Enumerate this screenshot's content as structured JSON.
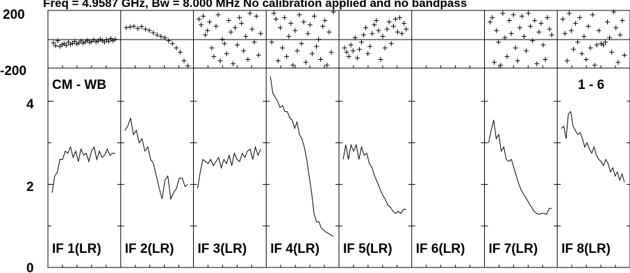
{
  "chart_data": {
    "type": "line",
    "title": "Freq = 4.9587 GHz, Bw = 8.000 MHz  No calibration applied and no bandpass",
    "left_label": "CM - WB",
    "right_label": "1 - 6",
    "phase_axis": {
      "ylim": [
        -200,
        200
      ],
      "tick_labels": [
        "200",
        "-200"
      ]
    },
    "amp_axis": {
      "ylim": [
        0,
        4.8
      ],
      "tick_labels": [
        "4",
        "2",
        "0"
      ],
      "ticks": [
        4,
        2,
        0
      ]
    },
    "panels": [
      {
        "label": "IF 1(LR)",
        "phase": [
          -25,
          -45,
          -10,
          -50,
          -38,
          -30,
          -42,
          -20,
          -35,
          -28,
          -15,
          -33,
          -25,
          -12,
          -28,
          -18,
          -8,
          -22,
          -15,
          -5,
          -18,
          -12,
          0,
          -10,
          -20,
          -5,
          -15,
          5,
          -10,
          0
        ],
        "amp": [
          1.8,
          2.2,
          2.3,
          2.6,
          2.6,
          2.8,
          2.75,
          2.9,
          2.65,
          2.8,
          2.55,
          2.85,
          2.7,
          2.75,
          2.55,
          2.8,
          2.9,
          2.6,
          2.8,
          2.65,
          2.7,
          2.85,
          2.7,
          2.75,
          2.75
        ]
      },
      {
        "label": "IF 2(LR)",
        "phase": [
          80,
          85,
          90,
          75,
          88,
          70,
          60,
          45,
          30,
          20,
          10,
          -10,
          -30,
          -60,
          -90,
          -150,
          -185
        ],
        "amp": [
          3.3,
          3.4,
          3.6,
          3.2,
          3.3,
          3.0,
          3.1,
          2.8,
          2.9,
          2.6,
          2.5,
          2.2,
          1.9,
          1.65,
          2.1,
          2.2,
          1.65,
          1.8,
          1.9,
          2.15,
          2.15,
          1.95,
          2.0
        ]
      },
      {
        "label": "IF 3(LR)",
        "phase": [
          140,
          100,
          160,
          30,
          60,
          120,
          -60,
          -120,
          90,
          170,
          -150,
          0,
          -30,
          -100,
          130,
          50,
          -170,
          80,
          -40,
          150,
          110,
          -80,
          20,
          -140,
          180,
          70,
          -20,
          160,
          -110,
          40
        ],
        "amp": [
          1.9,
          2.3,
          2.6,
          2.55,
          2.5,
          2.6,
          2.45,
          2.55,
          2.65,
          2.4,
          2.6,
          2.5,
          2.7,
          2.45,
          2.75,
          2.6,
          2.55,
          2.75,
          2.65,
          2.8,
          2.85,
          2.6,
          2.9,
          2.7,
          2.85
        ]
      },
      {
        "label": "IF 4(LR)",
        "phase": [
          -20,
          180,
          140,
          -150,
          80,
          -60,
          150,
          -120,
          20,
          110,
          -180,
          60,
          -80,
          170,
          -30,
          120,
          -160,
          40,
          100,
          -100,
          160,
          -50,
          0,
          -140,
          90,
          130,
          -180,
          50,
          -90,
          190
        ],
        "amp": [
          4.6,
          4.2,
          4.1,
          4.0,
          3.85,
          3.9,
          3.75,
          3.75,
          3.6,
          3.55,
          3.35,
          3.5,
          3.2,
          3.1,
          2.9,
          2.6,
          2.2,
          1.8,
          1.3,
          1.1,
          1.1,
          0.95,
          0.9,
          0.85,
          0.82,
          0.78,
          0.75
        ]
      },
      {
        "label": "IF 5(LR)",
        "phase": [
          -60,
          -90,
          -120,
          -40,
          -80,
          10,
          -130,
          -70,
          -20,
          30,
          80,
          -100,
          -50,
          40,
          100,
          130,
          60,
          -140,
          20,
          -60,
          70,
          120,
          -30,
          90,
          140,
          50,
          150,
          40,
          110,
          70
        ],
        "amp": [
          2.6,
          2.95,
          2.6,
          2.95,
          2.8,
          2.95,
          2.6,
          2.9,
          2.7,
          2.75,
          2.5,
          2.4,
          2.2,
          2.05,
          1.9,
          1.75,
          1.65,
          1.5,
          1.45,
          1.35,
          1.3,
          1.35,
          1.3,
          1.4,
          1.4
        ]
      },
      {
        "label": "IF 6(LR)",
        "phase": [],
        "amp": []
      },
      {
        "label": "IF 7(LR)",
        "phase": [
          120,
          150,
          -160,
          60,
          -20,
          -180,
          180,
          10,
          -120,
          130,
          40,
          170,
          -60,
          -150,
          80,
          160,
          20,
          -80,
          180,
          90,
          -10,
          130,
          -170,
          50,
          110,
          -40,
          -140,
          150,
          70,
          30
        ],
        "amp": [
          3.0,
          3.3,
          3.55,
          3.1,
          3.2,
          2.8,
          2.9,
          2.6,
          2.55,
          2.6,
          2.4,
          2.2,
          2.0,
          1.85,
          1.75,
          1.65,
          1.55,
          1.45,
          1.35,
          1.3,
          1.28,
          1.3,
          1.3,
          1.28,
          1.42,
          1.42
        ]
      },
      {
        "label": "IF 8(LR)",
        "phase": [
          140,
          40,
          -150,
          180,
          60,
          -70,
          110,
          -20,
          150,
          -100,
          20,
          -140,
          90,
          -60,
          170,
          -180,
          -40,
          60,
          -30,
          -40,
          -20,
          120,
          10,
          -90,
          190,
          80,
          -160,
          30,
          130,
          -110
        ],
        "amp": [
          3.35,
          3.4,
          3.1,
          3.7,
          3.75,
          3.4,
          3.3,
          3.2,
          3.25,
          3.1,
          2.9,
          3.0,
          2.85,
          2.75,
          2.9,
          2.7,
          2.6,
          2.55,
          2.45,
          2.6,
          2.5,
          2.3,
          2.4,
          2.2,
          2.3,
          2.1,
          2.25,
          2.05
        ]
      }
    ]
  }
}
